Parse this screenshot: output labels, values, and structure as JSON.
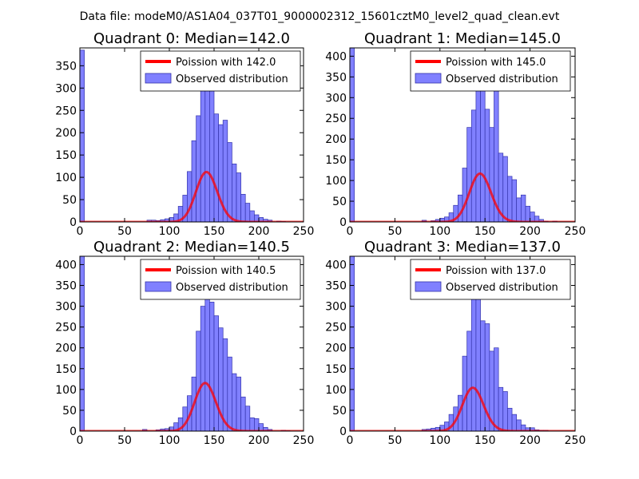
{
  "figure_title": "Data file: modeM0/AS1A04_037T01_9000002312_15601cztM0_level2_quad_clean.evt",
  "colors": {
    "hist_fill": "#8080ff",
    "hist_edge": "#3333aa",
    "poisson_line": "#ff0000",
    "legend_border": "#000000"
  },
  "chart_data": [
    {
      "type": "bar",
      "title": "Quadrant 0: Median=142.0",
      "median": 142.0,
      "xlim": [
        0,
        250
      ],
      "ylim": [
        0,
        390
      ],
      "xticks": [
        0,
        50,
        100,
        150,
        200,
        250
      ],
      "yticks": [
        0,
        50,
        100,
        150,
        200,
        250,
        300,
        350
      ],
      "bin_width": 5,
      "bins": [
        [
          0,
          385
        ],
        [
          75,
          4
        ],
        [
          80,
          4
        ],
        [
          85,
          3
        ],
        [
          90,
          5
        ],
        [
          95,
          7
        ],
        [
          100,
          10
        ],
        [
          105,
          18
        ],
        [
          110,
          35
        ],
        [
          115,
          60
        ],
        [
          120,
          113
        ],
        [
          125,
          182
        ],
        [
          130,
          238
        ],
        [
          135,
          330
        ],
        [
          140,
          355
        ],
        [
          145,
          318
        ],
        [
          150,
          242
        ],
        [
          155,
          218
        ],
        [
          160,
          228
        ],
        [
          165,
          178
        ],
        [
          170,
          130
        ],
        [
          175,
          110
        ],
        [
          180,
          62
        ],
        [
          185,
          42
        ],
        [
          190,
          25
        ],
        [
          195,
          16
        ],
        [
          200,
          10
        ],
        [
          205,
          6
        ],
        [
          210,
          4
        ],
        [
          220,
          2
        ],
        [
          225,
          1
        ]
      ],
      "legend": [
        "Poission with 142.0",
        "Observed distribution"
      ]
    },
    {
      "type": "bar",
      "title": "Quadrant 1: Median=145.0",
      "median": 145.0,
      "xlim": [
        0,
        250
      ],
      "ylim": [
        0,
        420
      ],
      "xticks": [
        0,
        50,
        100,
        150,
        200,
        250
      ],
      "yticks": [
        0,
        50,
        100,
        150,
        200,
        250,
        300,
        350,
        400
      ],
      "bin_width": 5,
      "bins": [
        [
          0,
          420
        ],
        [
          80,
          4
        ],
        [
          90,
          3
        ],
        [
          95,
          6
        ],
        [
          100,
          9
        ],
        [
          105,
          12
        ],
        [
          110,
          22
        ],
        [
          115,
          40
        ],
        [
          120,
          65
        ],
        [
          125,
          130
        ],
        [
          130,
          228
        ],
        [
          135,
          270
        ],
        [
          140,
          400
        ],
        [
          145,
          326
        ],
        [
          150,
          272
        ],
        [
          155,
          228
        ],
        [
          160,
          340
        ],
        [
          165,
          166
        ],
        [
          170,
          158
        ],
        [
          175,
          110
        ],
        [
          180,
          102
        ],
        [
          185,
          58
        ],
        [
          190,
          65
        ],
        [
          195,
          38
        ],
        [
          200,
          24
        ],
        [
          205,
          14
        ],
        [
          210,
          6
        ],
        [
          215,
          2
        ],
        [
          225,
          2
        ]
      ],
      "legend": [
        "Poission with 145.0",
        "Observed distribution"
      ]
    },
    {
      "type": "bar",
      "title": "Quadrant 2: Median=140.5",
      "median": 140.5,
      "xlim": [
        0,
        250
      ],
      "ylim": [
        0,
        420
      ],
      "xticks": [
        0,
        50,
        100,
        150,
        200,
        250
      ],
      "yticks": [
        0,
        50,
        100,
        150,
        200,
        250,
        300,
        350,
        400
      ],
      "bin_width": 5,
      "bins": [
        [
          0,
          420
        ],
        [
          70,
          4
        ],
        [
          85,
          3
        ],
        [
          90,
          5
        ],
        [
          95,
          6
        ],
        [
          100,
          10
        ],
        [
          105,
          20
        ],
        [
          110,
          32
        ],
        [
          115,
          58
        ],
        [
          120,
          85
        ],
        [
          125,
          130
        ],
        [
          130,
          240
        ],
        [
          135,
          300
        ],
        [
          140,
          378
        ],
        [
          145,
          310
        ],
        [
          150,
          277
        ],
        [
          155,
          248
        ],
        [
          160,
          222
        ],
        [
          165,
          178
        ],
        [
          170,
          138
        ],
        [
          175,
          130
        ],
        [
          180,
          82
        ],
        [
          185,
          60
        ],
        [
          190,
          32
        ],
        [
          195,
          30
        ],
        [
          200,
          18
        ],
        [
          205,
          9
        ],
        [
          210,
          4
        ],
        [
          225,
          2
        ],
        [
          230,
          1
        ]
      ],
      "legend": [
        "Poission with 140.5",
        "Observed distribution"
      ]
    },
    {
      "type": "bar",
      "title": "Quadrant 3: Median=137.0",
      "median": 137.0,
      "xlim": [
        0,
        250
      ],
      "ylim": [
        0,
        420
      ],
      "xticks": [
        0,
        50,
        100,
        150,
        200,
        250
      ],
      "yticks": [
        0,
        50,
        100,
        150,
        200,
        250,
        300,
        350,
        400
      ],
      "bin_width": 5,
      "bins": [
        [
          0,
          420
        ],
        [
          80,
          4
        ],
        [
          85,
          5
        ],
        [
          90,
          7
        ],
        [
          95,
          9
        ],
        [
          100,
          14
        ],
        [
          105,
          22
        ],
        [
          110,
          40
        ],
        [
          115,
          58
        ],
        [
          120,
          86
        ],
        [
          125,
          180
        ],
        [
          130,
          240
        ],
        [
          135,
          360
        ],
        [
          140,
          335
        ],
        [
          145,
          265
        ],
        [
          150,
          258
        ],
        [
          155,
          192
        ],
        [
          160,
          200
        ],
        [
          165,
          105
        ],
        [
          170,
          95
        ],
        [
          175,
          55
        ],
        [
          180,
          40
        ],
        [
          185,
          27
        ],
        [
          190,
          15
        ],
        [
          195,
          8
        ],
        [
          200,
          8
        ],
        [
          205,
          3
        ],
        [
          210,
          2
        ],
        [
          215,
          2
        ]
      ],
      "legend": [
        "Poission with 137.0",
        "Observed distribution"
      ]
    }
  ]
}
